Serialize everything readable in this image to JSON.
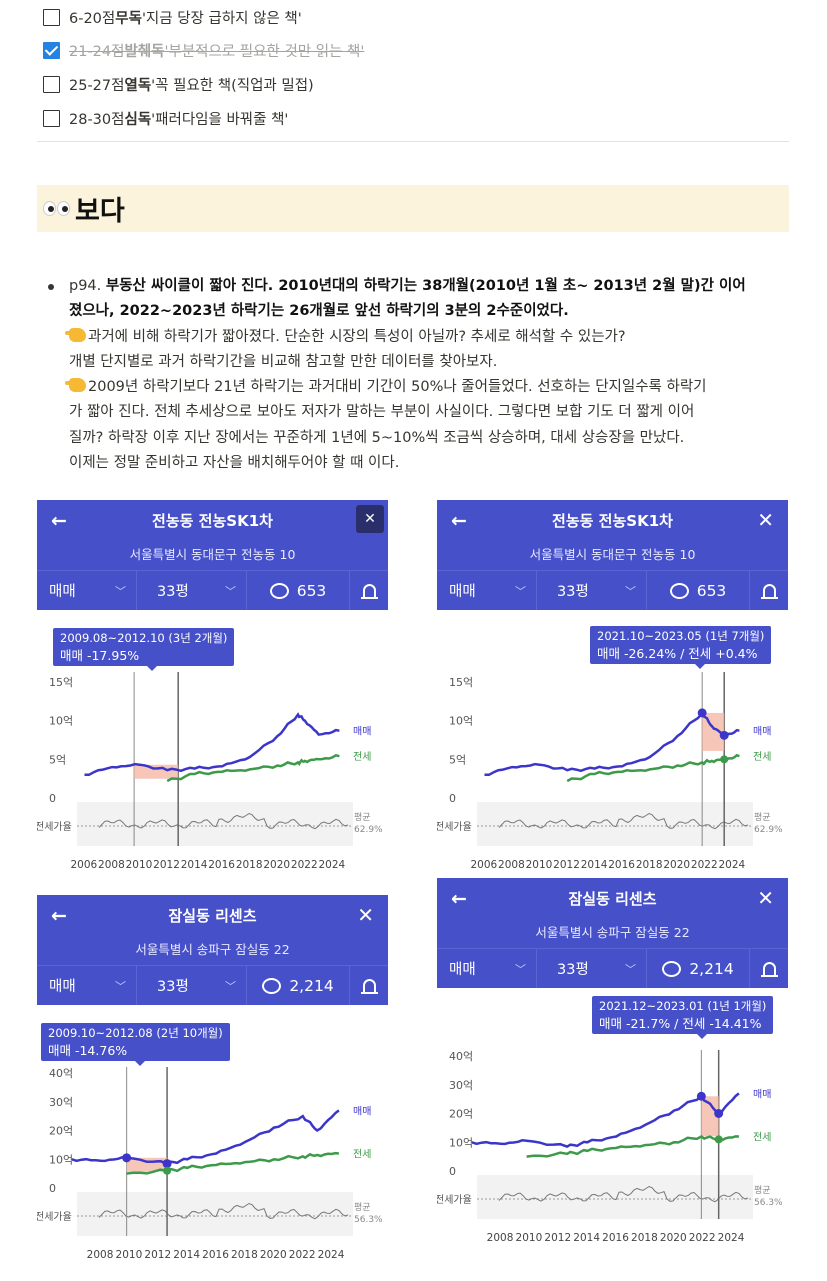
{
  "checklist": [
    {
      "checked": false,
      "prefix": "6-20점 ",
      "bold": "무독",
      "rest": " '지금 당장 급하지 않은 책'"
    },
    {
      "checked": true,
      "prefix": "21-24점 ",
      "bold": "발췌독",
      "rest": " '부분적으로 필요한 것만 읽는 책'"
    },
    {
      "checked": false,
      "prefix": "25-27점 ",
      "bold": "열독",
      "rest": " '꼭 필요한 책(직업과 밀접)"
    },
    {
      "checked": false,
      "prefix": "28-30점 ",
      "bold": "심독",
      "rest": " '패러다임을 바꿔줄 책'"
    }
  ],
  "callout": {
    "title": "보다",
    "icon": "eyes-emoji"
  },
  "note": {
    "l1a": "p94. ",
    "l1b": "부동산 싸이클이 짧아 진다.",
    "l1c": " 2010년대의 하락기는 38개월(2010년 1월 초~ 2013년 2월 말)간 이어",
    "l2a": "졌으나, 2022~2023년 ",
    "l2b": "하락기는 26개월로 앞선 하락기의 3분의 2수준이었다.",
    "l3": "과거에 비해 하락기가 짧아졌다. 단순한 시장의 특성이 아닐까? 추세로 해석할 수 있는가?",
    "l4": "개별 단지별로 과거 하락기간을 비교해 참고할 만한 데이터를 찾아보자.",
    "l5": "2009년 하락기보다 21년 하락기는 과거대비  기간이 50%나 줄어들었다. 선호하는 단지일수록 하락기",
    "l6": "가 짧아 진다. 전체 추세상으로 보아도 저자가 말하는 부분이 사실이다. 그렇다면 보합 기도 더 짧게 이어",
    "l7": "질까? 하락장 이후 지난 장에서는 꾸준하게 1년에 5~10%씩 조금씩 상승하며, 대세 상승장을 만났다.",
    "l8": "이제는 정말 준비하고 자산을 배치해두어야 할 때 이다."
  },
  "common": {
    "tab_trade": "매매",
    "tab_area": "33평",
    "label_trade": "매매",
    "label_jeonse": "전세",
    "label_ratio": "전세가율",
    "label_avg": "평균"
  },
  "cards": [
    {
      "title": "전농동 전농SK1차",
      "address": "서울특별시 동대문구 전농동 10",
      "comments": "653",
      "tip_l1": "2009.08~2012.10 (3년 2개월)",
      "tip_l2": "매매 -17.95%",
      "avg": "62.9%",
      "y_ticks": [
        "15억",
        "10억",
        "5억",
        "0"
      ],
      "x_ticks": [
        "2006",
        "2008",
        "2010",
        "2012",
        "2014",
        "2016",
        "2018",
        "2020",
        "2022",
        "2024"
      ]
    },
    {
      "title": "전농동 전농SK1차",
      "address": "서울특별시 동대문구 전농동 10",
      "comments": "653",
      "tip_l1": "2021.10~2023.05 (1년 7개월)",
      "tip_l2": "매매 -26.24%  /  전세 +0.4%",
      "avg": "62.9%",
      "y_ticks": [
        "15억",
        "10억",
        "5억",
        "0"
      ],
      "x_ticks": [
        "2006",
        "2008",
        "2010",
        "2012",
        "2014",
        "2016",
        "2018",
        "2020",
        "2022",
        "2024"
      ]
    },
    {
      "title": "잠실동 리센츠",
      "address": "서울특별시 송파구 잠실동 22",
      "comments": "2,214",
      "tip_l1": "2009.10~2012.08 (2년 10개월)",
      "tip_l2": "매매 -14.76%",
      "avg": "56.3%",
      "y_ticks": [
        "40억",
        "30억",
        "20억",
        "10억",
        "0"
      ],
      "x_ticks": [
        "2008",
        "2010",
        "2012",
        "2014",
        "2016",
        "2018",
        "2020",
        "2022",
        "2024"
      ]
    },
    {
      "title": "잠실동 리센츠",
      "address": "서울특별시 송파구 잠실동 22",
      "comments": "2,214",
      "tip_l1": "2021.12~2023.01 (1년 1개월)",
      "tip_l2": "매매 -21.7%  /  전세 -14.41%",
      "avg": "56.3%",
      "y_ticks": [
        "40억",
        "30억",
        "20억",
        "10억",
        "0"
      ],
      "x_ticks": [
        "2008",
        "2010",
        "2012",
        "2014",
        "2016",
        "2018",
        "2020",
        "2022",
        "2024"
      ]
    }
  ],
  "chart_data": [
    {
      "type": "line",
      "ylim_unit": "억",
      "x": [
        2006,
        2008,
        2010,
        2012,
        2014,
        2016,
        2018,
        2020,
        2021.5,
        2022,
        2023,
        2024.5
      ],
      "series": [
        {
          "name": "매매",
          "values": [
            3,
            4,
            4.3,
            3.6,
            3.8,
            4.1,
            5.3,
            8,
            10.8,
            10,
            8.2,
            8.7
          ]
        },
        {
          "name": "전세",
          "values": [
            null,
            null,
            null,
            2.2,
            3.1,
            3.4,
            3.7,
            4.2,
            4.6,
            4.8,
            5,
            5.4
          ]
        }
      ],
      "highlight": [
        2009.6,
        2012.8
      ]
    },
    {
      "type": "line",
      "ylim_unit": "억",
      "x": [
        2006,
        2008,
        2010,
        2012,
        2014,
        2016,
        2018,
        2020,
        2021.8,
        2022.5,
        2023.4,
        2024.5
      ],
      "series": [
        {
          "name": "매매",
          "values": [
            3,
            4,
            4.3,
            3.6,
            3.8,
            4.1,
            5.3,
            8,
            11,
            9.3,
            8.1,
            8.7
          ]
        },
        {
          "name": "전세",
          "values": [
            null,
            null,
            null,
            2.2,
            3.1,
            3.4,
            3.7,
            4.2,
            4.6,
            4.8,
            5,
            5.4
          ]
        }
      ],
      "highlight": [
        2021.8,
        2023.4
      ]
    },
    {
      "type": "line",
      "ylim_unit": "억",
      "x": [
        2006,
        2008,
        2009.8,
        2012.6,
        2014,
        2016,
        2018,
        2020,
        2022,
        2023,
        2024.5
      ],
      "series": [
        {
          "name": "매매",
          "values": [
            10,
            9.5,
            10.5,
            8.5,
            10,
            12,
            16,
            21,
            25,
            20,
            27
          ]
        },
        {
          "name": "전세",
          "values": [
            null,
            null,
            5,
            6,
            7,
            8,
            9,
            10,
            11,
            11.5,
            12
          ]
        }
      ],
      "highlight": [
        2009.8,
        2012.6
      ]
    },
    {
      "type": "line",
      "ylim_unit": "억",
      "x": [
        2006,
        2008,
        2009.8,
        2012.6,
        2014,
        2016,
        2018,
        2020,
        2021.9,
        2023.1,
        2024.5
      ],
      "series": [
        {
          "name": "매매",
          "values": [
            10,
            9.5,
            10.5,
            8.5,
            10,
            12,
            16,
            21,
            26,
            20,
            27
          ]
        },
        {
          "name": "전세",
          "values": [
            null,
            null,
            5,
            6,
            7,
            8,
            9,
            10,
            12,
            11,
            12
          ]
        }
      ],
      "highlight": [
        2021.9,
        2023.1
      ]
    }
  ],
  "colors": {
    "trade": "#3b36c9",
    "jeonse": "#3d9a4a",
    "header": "#4650c8",
    "ratio": "#777777"
  }
}
